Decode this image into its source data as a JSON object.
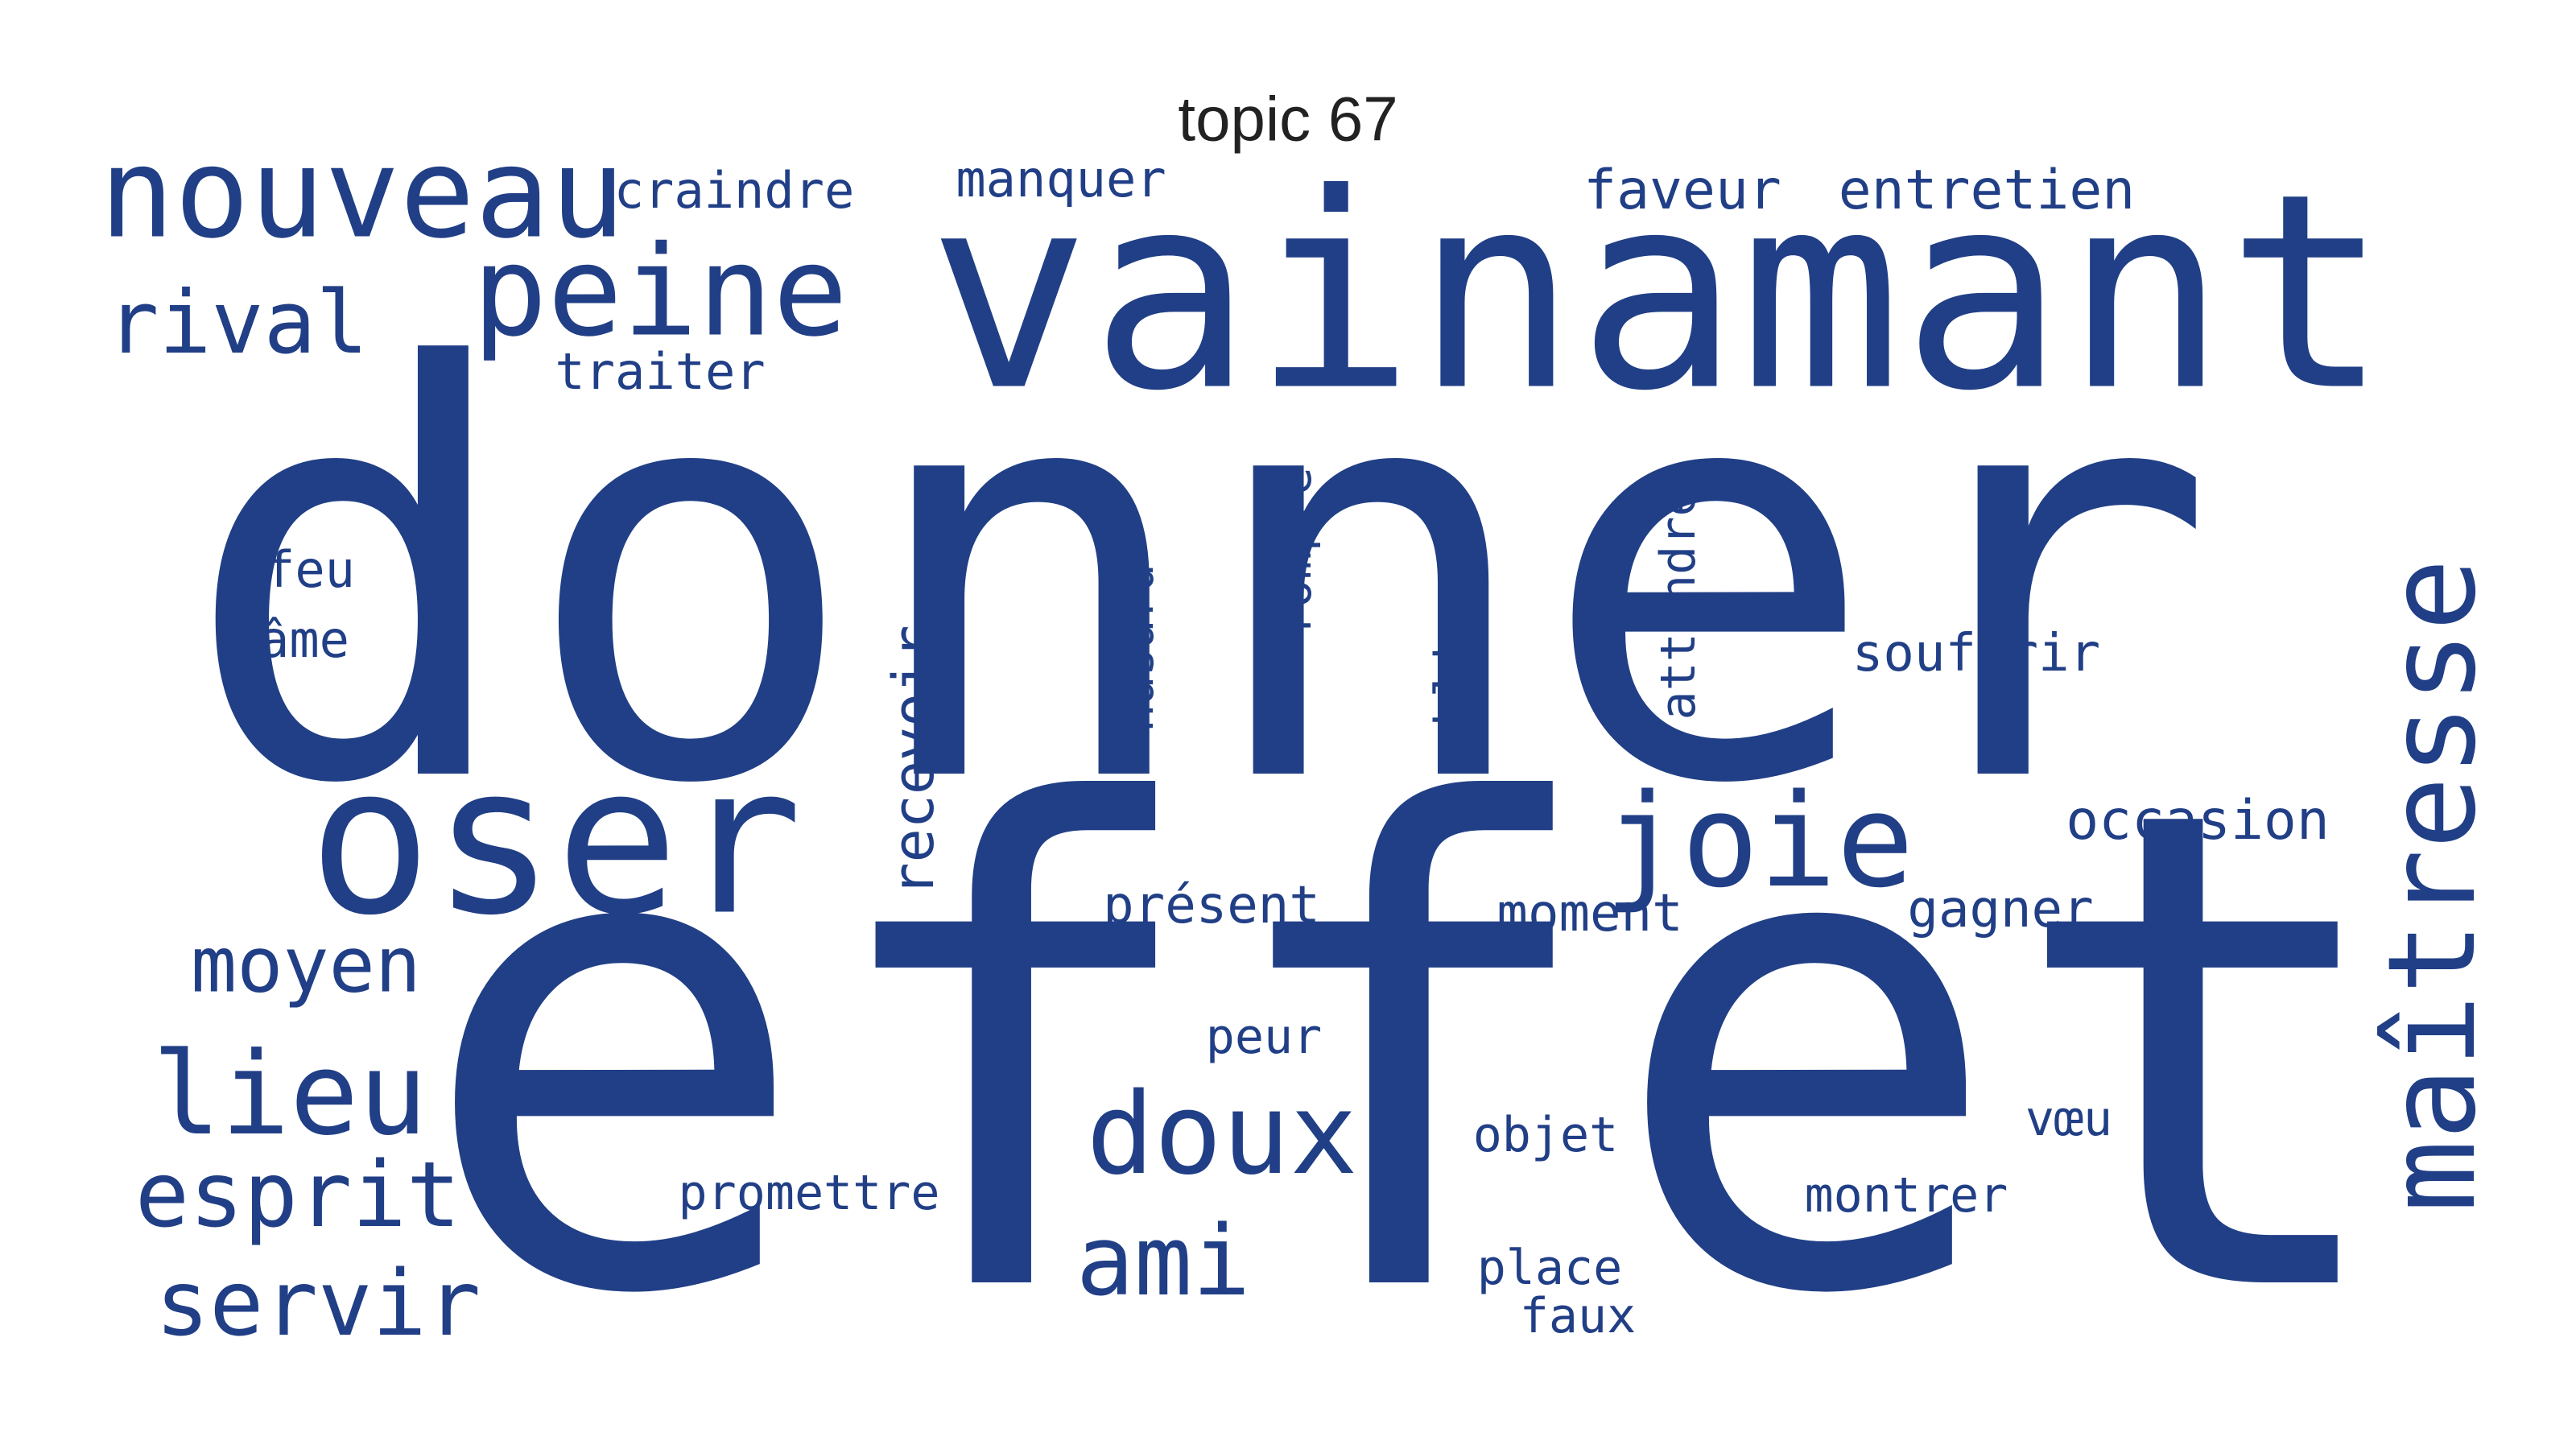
{
  "title": "topic 67",
  "color": "#213f86",
  "words": [
    {
      "text": "donner"
    },
    {
      "text": "effet"
    },
    {
      "text": "vainamant"
    },
    {
      "text": "oser"
    },
    {
      "text": "nouveau"
    },
    {
      "text": "peine"
    },
    {
      "text": "joie"
    },
    {
      "text": "maîtresse"
    },
    {
      "text": "doux"
    },
    {
      "text": "lieu"
    },
    {
      "text": "ami"
    },
    {
      "text": "esprit"
    },
    {
      "text": "servir"
    },
    {
      "text": "moyen"
    },
    {
      "text": "rival"
    },
    {
      "text": "craindre"
    },
    {
      "text": "manquer"
    },
    {
      "text": "faveur"
    },
    {
      "text": "entretien"
    },
    {
      "text": "traiter"
    },
    {
      "text": "feu"
    },
    {
      "text": "âme"
    },
    {
      "text": "recevoir"
    },
    {
      "text": "hasard"
    },
    {
      "text": "rompre"
    },
    {
      "text": "obliger"
    },
    {
      "text": "attendre"
    },
    {
      "text": "souffrir"
    },
    {
      "text": "occasion"
    },
    {
      "text": "gagner"
    },
    {
      "text": "présent"
    },
    {
      "text": "moment"
    },
    {
      "text": "peur"
    },
    {
      "text": "objet"
    },
    {
      "text": "vœu"
    },
    {
      "text": "promettre"
    },
    {
      "text": "montrer"
    },
    {
      "text": "place"
    },
    {
      "text": "faux"
    }
  ]
}
